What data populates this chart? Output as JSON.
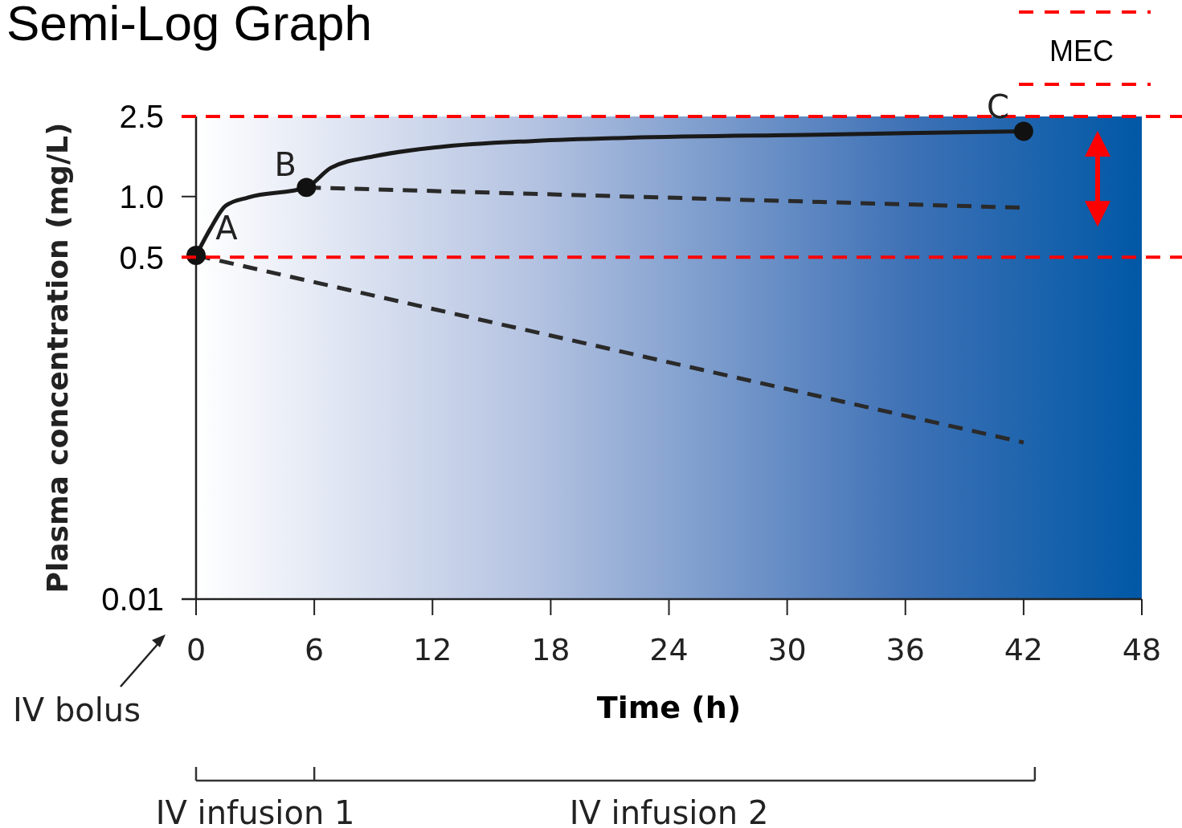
{
  "chart_data": {
    "type": "line",
    "title": "Semi-Log Graph",
    "xlabel": "Time (h)",
    "ylabel": "Plasma concentration (mg/L)",
    "log": "y",
    "xlim": [
      0,
      48
    ],
    "xticks": [
      0,
      6,
      12,
      18,
      24,
      30,
      36,
      42,
      48
    ],
    "ylim": [
      0.01,
      2.5
    ],
    "yticks": [
      0.01,
      0.5,
      {
        "value": 1,
        "label": "1.0"
      },
      2.5
    ],
    "grid": false,
    "legend": "top right",
    "series": [
      {
        "color": "#1a1a1a",
        "line_style": "solid",
        "x": [
          0,
          0.72,
          1.5,
          2.65,
          5.6,
          6.85,
          9.1,
          12.3,
          17.2,
          22,
          31.6,
          42
        ],
        "values": [
          0.51,
          0.69,
          0.9,
          0.99,
          1.11,
          1.39,
          1.59,
          1.76,
          1.89,
          1.96,
          2.03,
          2.11
        ]
      },
      {
        "color": "#2a2a2a",
        "line_style": "dashed",
        "x": [
          0,
          42
        ],
        "values": [
          0.51,
          0.06
        ]
      },
      {
        "color": "#2a2a2a",
        "line_style": "dashed",
        "x": [
          5.6,
          42
        ],
        "values": [
          1.11,
          0.88
        ]
      },
      {
        "type": "scatter",
        "color": "#111111",
        "marker": "circle",
        "x": [
          0,
          5.6,
          42
        ],
        "values": [
          0.51,
          1.11,
          2.11
        ]
      }
    ],
    "ref_lines": [
      {
        "axis": "y",
        "value": 0.5,
        "label": "MEC",
        "color": "#ff0000",
        "line_style": "dashed"
      },
      {
        "axis": "y",
        "value": 2.5,
        "color": "#ff0000",
        "line_style": "dashed"
      }
    ],
    "annotations": [
      {
        "text": "A",
        "x": 0,
        "y": 0.51
      },
      {
        "text": "B",
        "x": 5.6,
        "y": 1.11
      },
      {
        "text": "C",
        "x": 42,
        "y": 2.11
      },
      "IV bolus",
      "IV infusion 1",
      "IV infusion 2"
    ]
  }
}
